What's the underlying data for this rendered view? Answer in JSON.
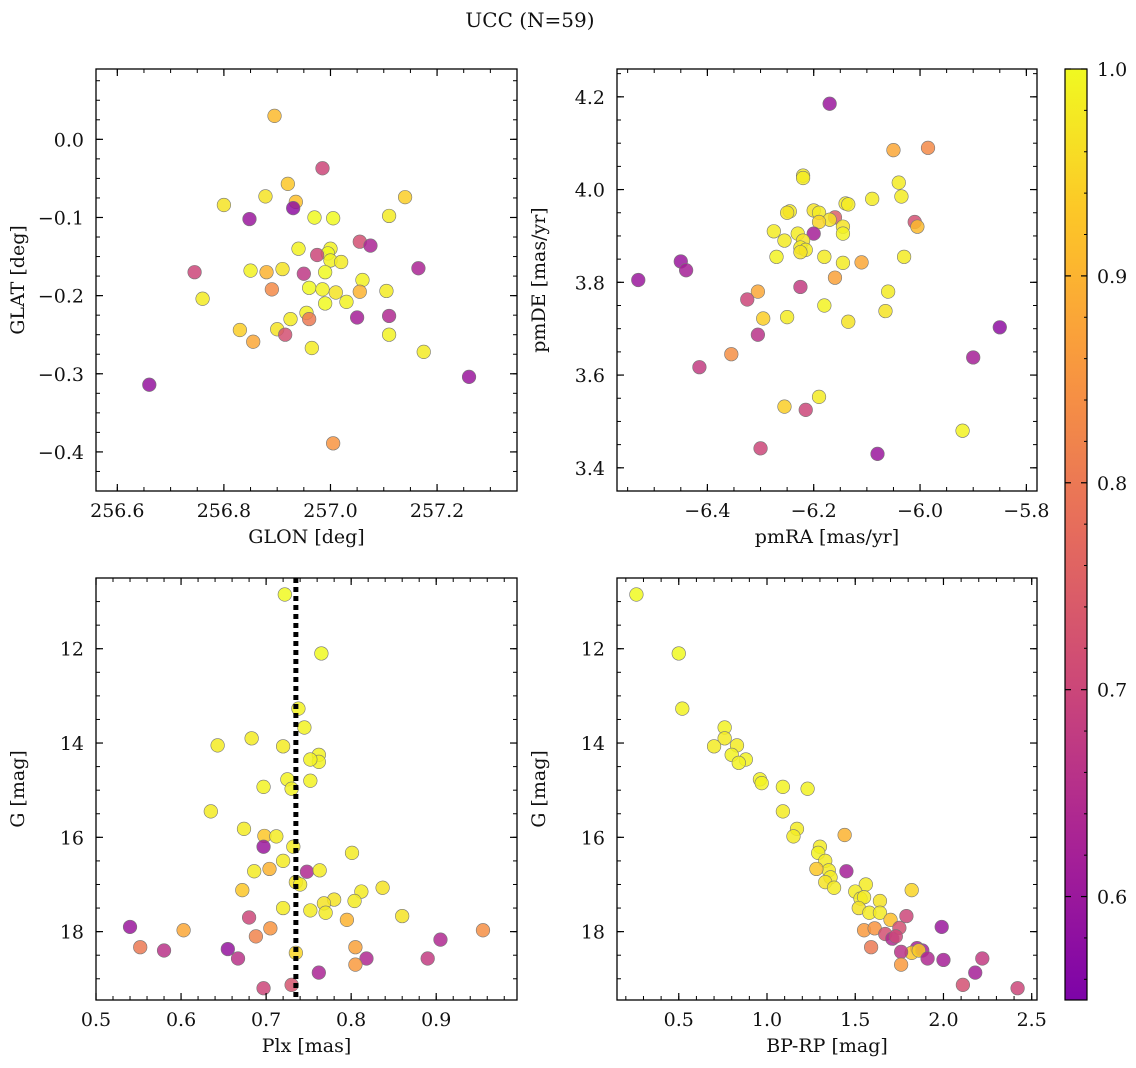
{
  "figure": {
    "title": "UCC (N=59)",
    "colorbar": {
      "min": 0.55,
      "max": 1.0,
      "ticks": [
        0.6,
        0.7,
        0.8,
        0.9,
        1.0
      ],
      "tick_labels": [
        "0.6",
        "0.7",
        "0.8",
        "0.9",
        "1.0"
      ],
      "colormap": "plasma"
    },
    "colors": {
      "marker_edge": "#777777",
      "frame": "#000000",
      "vline": "#000000"
    }
  },
  "chart_data": [
    {
      "type": "scatter",
      "xlabel": "GLON [deg]",
      "ylabel": "GLAT [deg]",
      "xlim": [
        256.56,
        257.35
      ],
      "ylim": [
        -0.45,
        0.09
      ],
      "x_ticks": [
        256.6,
        256.8,
        257.0,
        257.2
      ],
      "x_tick_labels": [
        "256.6",
        "256.8",
        "257.0",
        "257.2"
      ],
      "y_ticks": [
        0.0,
        -0.1,
        -0.2,
        -0.3,
        -0.4
      ],
      "y_tick_labels": [
        "0.0",
        "−0.1",
        "−0.2",
        "−0.3",
        "−0.4"
      ],
      "points": [
        [
          256.895,
          0.03,
          0.91
        ],
        [
          256.985,
          -0.037,
          0.7
        ],
        [
          256.92,
          -0.057,
          0.93
        ],
        [
          256.935,
          -0.08,
          0.92
        ],
        [
          256.8,
          -0.084,
          0.97
        ],
        [
          256.878,
          -0.073,
          0.97
        ],
        [
          256.848,
          -0.102,
          0.6
        ],
        [
          256.93,
          -0.088,
          0.58
        ],
        [
          257.14,
          -0.074,
          0.94
        ],
        [
          256.97,
          -0.1,
          1.0
        ],
        [
          257.005,
          -0.101,
          1.0
        ],
        [
          257.11,
          -0.098,
          0.98
        ],
        [
          257.055,
          -0.131,
          0.72
        ],
        [
          257.075,
          -0.136,
          0.63
        ],
        [
          256.94,
          -0.14,
          0.99
        ],
        [
          257.0,
          -0.14,
          0.99
        ],
        [
          256.995,
          -0.146,
          1.0
        ],
        [
          256.975,
          -0.148,
          0.7
        ],
        [
          257.0,
          -0.155,
          0.99
        ],
        [
          257.02,
          -0.157,
          0.98
        ],
        [
          256.745,
          -0.17,
          0.7
        ],
        [
          256.85,
          -0.168,
          0.99
        ],
        [
          256.88,
          -0.17,
          0.9
        ],
        [
          256.91,
          -0.166,
          0.97
        ],
        [
          256.95,
          -0.172,
          0.67
        ],
        [
          256.99,
          -0.17,
          1.0
        ],
        [
          257.06,
          -0.18,
          0.99
        ],
        [
          257.165,
          -0.165,
          0.63
        ],
        [
          256.89,
          -0.192,
          0.83
        ],
        [
          256.96,
          -0.19,
          1.0
        ],
        [
          256.985,
          -0.192,
          0.99
        ],
        [
          256.99,
          -0.21,
          1.0
        ],
        [
          257.01,
          -0.196,
          0.97
        ],
        [
          257.03,
          -0.208,
          0.99
        ],
        [
          257.055,
          -0.195,
          0.9
        ],
        [
          257.105,
          -0.194,
          0.98
        ],
        [
          256.76,
          -0.204,
          0.98
        ],
        [
          256.955,
          -0.222,
          0.99
        ],
        [
          256.925,
          -0.23,
          0.98
        ],
        [
          256.96,
          -0.23,
          0.8
        ],
        [
          257.05,
          -0.228,
          0.62
        ],
        [
          257.11,
          -0.226,
          0.64
        ],
        [
          256.83,
          -0.244,
          0.94
        ],
        [
          256.9,
          -0.243,
          0.97
        ],
        [
          256.915,
          -0.25,
          0.72
        ],
        [
          257.11,
          -0.25,
          0.99
        ],
        [
          256.855,
          -0.259,
          0.88
        ],
        [
          256.965,
          -0.267,
          0.98
        ],
        [
          257.175,
          -0.272,
          0.98
        ],
        [
          256.66,
          -0.314,
          0.59
        ],
        [
          257.26,
          -0.304,
          0.6
        ],
        [
          257.005,
          -0.389,
          0.85
        ]
      ]
    },
    {
      "type": "scatter",
      "xlabel": "pmRA [mas/yr]",
      "ylabel": "pmDE [mas/yr]",
      "xlim": [
        -6.57,
        -5.78
      ],
      "ylim": [
        3.35,
        4.26
      ],
      "x_ticks": [
        -6.4,
        -6.2,
        -6.0,
        -5.8
      ],
      "x_tick_labels": [
        "−6.4",
        "−6.2",
        "−6.0",
        "−5.8"
      ],
      "y_ticks": [
        3.4,
        3.6,
        3.8,
        4.0,
        4.2
      ],
      "y_tick_labels": [
        "3.4",
        "3.6",
        "3.8",
        "4.0",
        "4.2"
      ],
      "points": [
        [
          -6.17,
          4.185,
          0.6
        ],
        [
          -5.985,
          4.09,
          0.83
        ],
        [
          -6.05,
          4.085,
          0.88
        ],
        [
          -6.22,
          4.03,
          0.98
        ],
        [
          -6.22,
          4.025,
          0.98
        ],
        [
          -6.04,
          4.015,
          0.98
        ],
        [
          -6.09,
          3.98,
          0.98
        ],
        [
          -6.035,
          3.985,
          0.98
        ],
        [
          -6.14,
          3.97,
          0.98
        ],
        [
          -6.135,
          3.968,
          0.98
        ],
        [
          -6.2,
          3.955,
          0.97
        ],
        [
          -6.19,
          3.95,
          0.98
        ],
        [
          -6.245,
          3.953,
          0.98
        ],
        [
          -6.25,
          3.95,
          0.97
        ],
        [
          -6.16,
          3.94,
          0.75
        ],
        [
          -6.17,
          3.935,
          0.97
        ],
        [
          -6.19,
          3.93,
          0.95
        ],
        [
          -6.145,
          3.92,
          0.97
        ],
        [
          -6.01,
          3.93,
          0.72
        ],
        [
          -6.005,
          3.92,
          0.91
        ],
        [
          -6.275,
          3.91,
          0.98
        ],
        [
          -6.23,
          3.905,
          0.98
        ],
        [
          -6.145,
          3.905,
          0.99
        ],
        [
          -6.2,
          3.905,
          0.62
        ],
        [
          -6.255,
          3.89,
          0.98
        ],
        [
          -6.22,
          3.89,
          0.97
        ],
        [
          -6.225,
          3.875,
          0.98
        ],
        [
          -6.215,
          3.87,
          0.98
        ],
        [
          -6.225,
          3.865,
          0.97
        ],
        [
          -6.18,
          3.855,
          0.98
        ],
        [
          -6.27,
          3.855,
          0.99
        ],
        [
          -6.03,
          3.855,
          0.98
        ],
        [
          -6.145,
          3.842,
          0.98
        ],
        [
          -6.11,
          3.843,
          0.88
        ],
        [
          -6.45,
          3.845,
          0.6
        ],
        [
          -6.44,
          3.826,
          0.62
        ],
        [
          -6.53,
          3.805,
          0.6
        ],
        [
          -6.16,
          3.81,
          0.87
        ],
        [
          -6.225,
          3.79,
          0.68
        ],
        [
          -6.06,
          3.78,
          0.98
        ],
        [
          -6.305,
          3.78,
          0.88
        ],
        [
          -6.325,
          3.763,
          0.7
        ],
        [
          -6.18,
          3.75,
          0.99
        ],
        [
          -6.065,
          3.738,
          0.97
        ],
        [
          -6.295,
          3.722,
          0.94
        ],
        [
          -6.25,
          3.725,
          0.98
        ],
        [
          -6.135,
          3.715,
          0.97
        ],
        [
          -6.305,
          3.687,
          0.66
        ],
        [
          -5.85,
          3.703,
          0.58
        ],
        [
          -6.355,
          3.645,
          0.84
        ],
        [
          -5.9,
          3.638,
          0.62
        ],
        [
          -6.415,
          3.617,
          0.68
        ],
        [
          -6.19,
          3.553,
          0.98
        ],
        [
          -6.255,
          3.532,
          0.94
        ],
        [
          -6.215,
          3.525,
          0.7
        ],
        [
          -5.92,
          3.48,
          0.99
        ],
        [
          -6.3,
          3.442,
          0.7
        ],
        [
          -6.08,
          3.43,
          0.6
        ]
      ]
    },
    {
      "type": "scatter",
      "xlabel": "Plx [mas]",
      "ylabel": "G [mag]",
      "xlim": [
        0.5,
        0.995
      ],
      "ylim": [
        19.45,
        10.5
      ],
      "x_ticks": [
        0.5,
        0.6,
        0.7,
        0.8,
        0.9
      ],
      "x_tick_labels": [
        "0.5",
        "0.6",
        "0.7",
        "0.8",
        "0.9"
      ],
      "y_ticks": [
        12,
        14,
        16,
        18
      ],
      "y_tick_labels": [
        "12",
        "14",
        "16",
        "18"
      ],
      "vline": 0.735,
      "points": [
        [
          0.722,
          10.85,
          1.0
        ],
        [
          0.765,
          12.1,
          1.0
        ],
        [
          0.738,
          13.27,
          0.99
        ],
        [
          0.745,
          13.67,
          0.99
        ],
        [
          0.683,
          13.9,
          0.98
        ],
        [
          0.643,
          14.05,
          0.98
        ],
        [
          0.72,
          14.07,
          0.98
        ],
        [
          0.762,
          14.25,
          0.99
        ],
        [
          0.762,
          14.4,
          0.99
        ],
        [
          0.752,
          14.35,
          0.99
        ],
        [
          0.725,
          14.77,
          0.99
        ],
        [
          0.752,
          14.8,
          0.99
        ],
        [
          0.697,
          14.93,
          0.99
        ],
        [
          0.73,
          14.97,
          0.99
        ],
        [
          0.635,
          15.45,
          0.98
        ],
        [
          0.674,
          15.82,
          0.98
        ],
        [
          0.698,
          15.97,
          0.93
        ],
        [
          0.712,
          15.98,
          0.98
        ],
        [
          0.732,
          16.2,
          0.98
        ],
        [
          0.697,
          16.2,
          0.6
        ],
        [
          0.801,
          16.33,
          0.98
        ],
        [
          0.72,
          16.5,
          0.98
        ],
        [
          0.704,
          16.67,
          0.9
        ],
        [
          0.686,
          16.72,
          0.98
        ],
        [
          0.748,
          16.73,
          0.64
        ],
        [
          0.763,
          16.7,
          0.98
        ],
        [
          0.735,
          16.95,
          0.97
        ],
        [
          0.74,
          17.0,
          0.98
        ],
        [
          0.672,
          17.12,
          0.93
        ],
        [
          0.812,
          17.15,
          0.98
        ],
        [
          0.837,
          17.07,
          0.97
        ],
        [
          0.78,
          17.32,
          0.97
        ],
        [
          0.768,
          17.4,
          0.97
        ],
        [
          0.804,
          17.35,
          0.98
        ],
        [
          0.72,
          17.5,
          0.98
        ],
        [
          0.752,
          17.55,
          0.98
        ],
        [
          0.77,
          17.6,
          0.98
        ],
        [
          0.795,
          17.75,
          0.9
        ],
        [
          0.86,
          17.67,
          0.97
        ],
        [
          0.68,
          17.7,
          0.7
        ],
        [
          0.54,
          17.9,
          0.6
        ],
        [
          0.603,
          17.97,
          0.88
        ],
        [
          0.705,
          17.93,
          0.85
        ],
        [
          0.955,
          17.97,
          0.84
        ],
        [
          0.688,
          18.1,
          0.82
        ],
        [
          0.905,
          18.17,
          0.64
        ],
        [
          0.552,
          18.33,
          0.8
        ],
        [
          0.58,
          18.4,
          0.66
        ],
        [
          0.655,
          18.37,
          0.59
        ],
        [
          0.805,
          18.33,
          0.87
        ],
        [
          0.735,
          18.45,
          0.95
        ],
        [
          0.667,
          18.57,
          0.66
        ],
        [
          0.818,
          18.57,
          0.64
        ],
        [
          0.89,
          18.57,
          0.68
        ],
        [
          0.805,
          18.7,
          0.86
        ],
        [
          0.762,
          18.87,
          0.63
        ],
        [
          0.697,
          19.2,
          0.7
        ],
        [
          0.73,
          19.13,
          0.73
        ]
      ]
    },
    {
      "type": "scatter",
      "xlabel": "BP-RP [mag]",
      "ylabel": "G [mag]",
      "xlim": [
        0.15,
        2.53
      ],
      "ylim": [
        19.45,
        10.5
      ],
      "x_ticks": [
        0.5,
        1.0,
        1.5,
        2.0,
        2.5
      ],
      "x_tick_labels": [
        "0.5",
        "1.0",
        "1.5",
        "2.0",
        "2.5"
      ],
      "y_ticks": [
        12,
        14,
        16,
        18
      ],
      "y_tick_labels": [
        "12",
        "14",
        "16",
        "18"
      ],
      "points": [
        [
          0.26,
          10.85,
          1.0
        ],
        [
          0.5,
          12.1,
          1.0
        ],
        [
          0.52,
          13.27,
          0.99
        ],
        [
          0.76,
          13.67,
          0.99
        ],
        [
          0.76,
          13.9,
          0.98
        ],
        [
          0.7,
          14.07,
          0.98
        ],
        [
          0.83,
          14.05,
          0.98
        ],
        [
          0.8,
          14.25,
          0.99
        ],
        [
          0.88,
          14.35,
          0.99
        ],
        [
          0.84,
          14.42,
          0.99
        ],
        [
          0.96,
          14.77,
          0.99
        ],
        [
          0.97,
          14.85,
          0.99
        ],
        [
          1.09,
          14.93,
          0.99
        ],
        [
          1.23,
          14.97,
          0.99
        ],
        [
          1.09,
          15.45,
          0.98
        ],
        [
          1.17,
          15.82,
          0.98
        ],
        [
          1.15,
          15.98,
          0.98
        ],
        [
          1.44,
          15.95,
          0.9
        ],
        [
          1.3,
          16.2,
          0.98
        ],
        [
          1.29,
          16.33,
          0.99
        ],
        [
          1.33,
          16.5,
          0.98
        ],
        [
          1.45,
          16.72,
          0.62
        ],
        [
          1.35,
          16.7,
          0.98
        ],
        [
          1.28,
          16.67,
          0.93
        ],
        [
          1.36,
          16.85,
          0.98
        ],
        [
          1.33,
          16.95,
          0.97
        ],
        [
          1.38,
          17.07,
          0.98
        ],
        [
          1.56,
          17.0,
          0.98
        ],
        [
          1.5,
          17.15,
          0.98
        ],
        [
          1.82,
          17.12,
          0.95
        ],
        [
          1.53,
          17.3,
          0.98
        ],
        [
          1.55,
          17.27,
          0.98
        ],
        [
          1.64,
          17.35,
          0.97
        ],
        [
          1.52,
          17.5,
          0.97
        ],
        [
          1.58,
          17.6,
          0.98
        ],
        [
          1.64,
          17.6,
          0.98
        ],
        [
          1.79,
          17.67,
          0.7
        ],
        [
          1.7,
          17.75,
          0.92
        ],
        [
          1.55,
          17.97,
          0.86
        ],
        [
          1.61,
          17.93,
          0.85
        ],
        [
          1.75,
          17.92,
          0.72
        ],
        [
          1.99,
          17.9,
          0.6
        ],
        [
          1.67,
          18.05,
          0.72
        ],
        [
          1.71,
          18.15,
          0.64
        ],
        [
          1.73,
          18.1,
          0.7
        ],
        [
          1.59,
          18.33,
          0.8
        ],
        [
          1.85,
          18.35,
          0.62
        ],
        [
          1.82,
          18.45,
          0.93
        ],
        [
          1.88,
          18.4,
          0.62
        ],
        [
          1.86,
          18.4,
          0.94
        ],
        [
          1.76,
          18.43,
          0.66
        ],
        [
          1.91,
          18.57,
          0.64
        ],
        [
          2.0,
          18.6,
          0.62
        ],
        [
          2.22,
          18.57,
          0.68
        ],
        [
          1.76,
          18.7,
          0.86
        ],
        [
          2.18,
          18.87,
          0.62
        ],
        [
          2.11,
          19.13,
          0.72
        ],
        [
          2.42,
          19.2,
          0.7
        ]
      ]
    }
  ]
}
